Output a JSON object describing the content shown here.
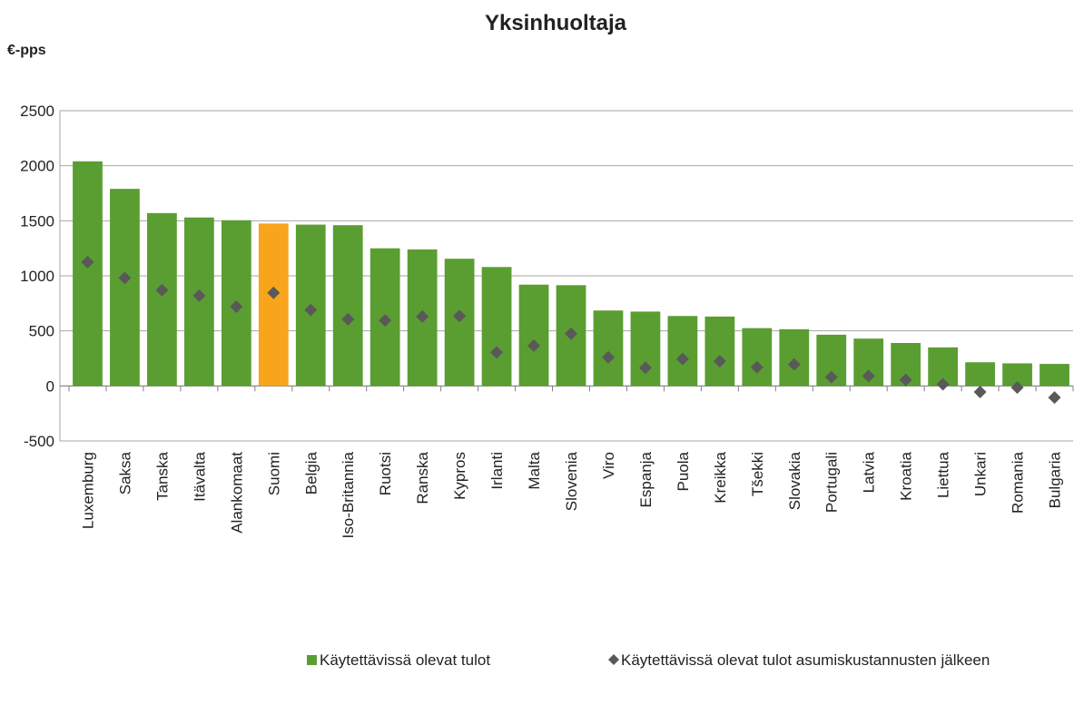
{
  "chart_data": {
    "type": "bar",
    "title": "Yksinhuoltaja",
    "y_label": "€-pps",
    "categories": [
      "Luxemburg",
      "Saksa",
      "Tanska",
      "Itävalta",
      "Alankomaat",
      "Suomi",
      "Belgia",
      "Iso-Britannia",
      "Ruotsi",
      "Ranska",
      "Kypros",
      "Irlanti",
      "Malta",
      "Slovenia",
      "Viro",
      "Espanja",
      "Puola",
      "Kreikka",
      "Tšekki",
      "Slovakia",
      "Portugali",
      "Latvia",
      "Kroatia",
      "Liettua",
      "Unkari",
      "Romania",
      "Bulgaria"
    ],
    "series": [
      {
        "name": "Käytettävissä olevat tulot",
        "type": "bar",
        "color": "#5a9e31",
        "colors": [
          "#5a9e31",
          "#5a9e31",
          "#5a9e31",
          "#5a9e31",
          "#5a9e31",
          "#f8a51c",
          "#5a9e31",
          "#5a9e31",
          "#5a9e31",
          "#5a9e31",
          "#5a9e31",
          "#5a9e31",
          "#5a9e31",
          "#5a9e31",
          "#5a9e31",
          "#5a9e31",
          "#5a9e31",
          "#5a9e31",
          "#5a9e31",
          "#5a9e31",
          "#5a9e31",
          "#5a9e31",
          "#5a9e31",
          "#5a9e31",
          "#5a9e31",
          "#5a9e31",
          "#5a9e31"
        ],
        "values": [
          2040,
          1790,
          1570,
          1530,
          1505,
          1475,
          1465,
          1460,
          1250,
          1240,
          1155,
          1080,
          920,
          915,
          685,
          675,
          635,
          630,
          525,
          515,
          465,
          430,
          390,
          350,
          215,
          205,
          200
        ]
      },
      {
        "name": "Käytettävissä olevat tulot asumiskustannusten jälkeen",
        "type": "diamond",
        "color": "#595959",
        "values": [
          1125,
          980,
          870,
          820,
          720,
          845,
          690,
          605,
          595,
          630,
          635,
          305,
          365,
          475,
          260,
          165,
          245,
          225,
          170,
          195,
          80,
          90,
          55,
          15,
          -55,
          -15,
          -105
        ]
      }
    ],
    "ylim": [
      -500,
      2500
    ],
    "yticks": [
      -500,
      0,
      500,
      1000,
      1500,
      2000,
      2500
    ],
    "grid": true,
    "legend": "bottom"
  }
}
